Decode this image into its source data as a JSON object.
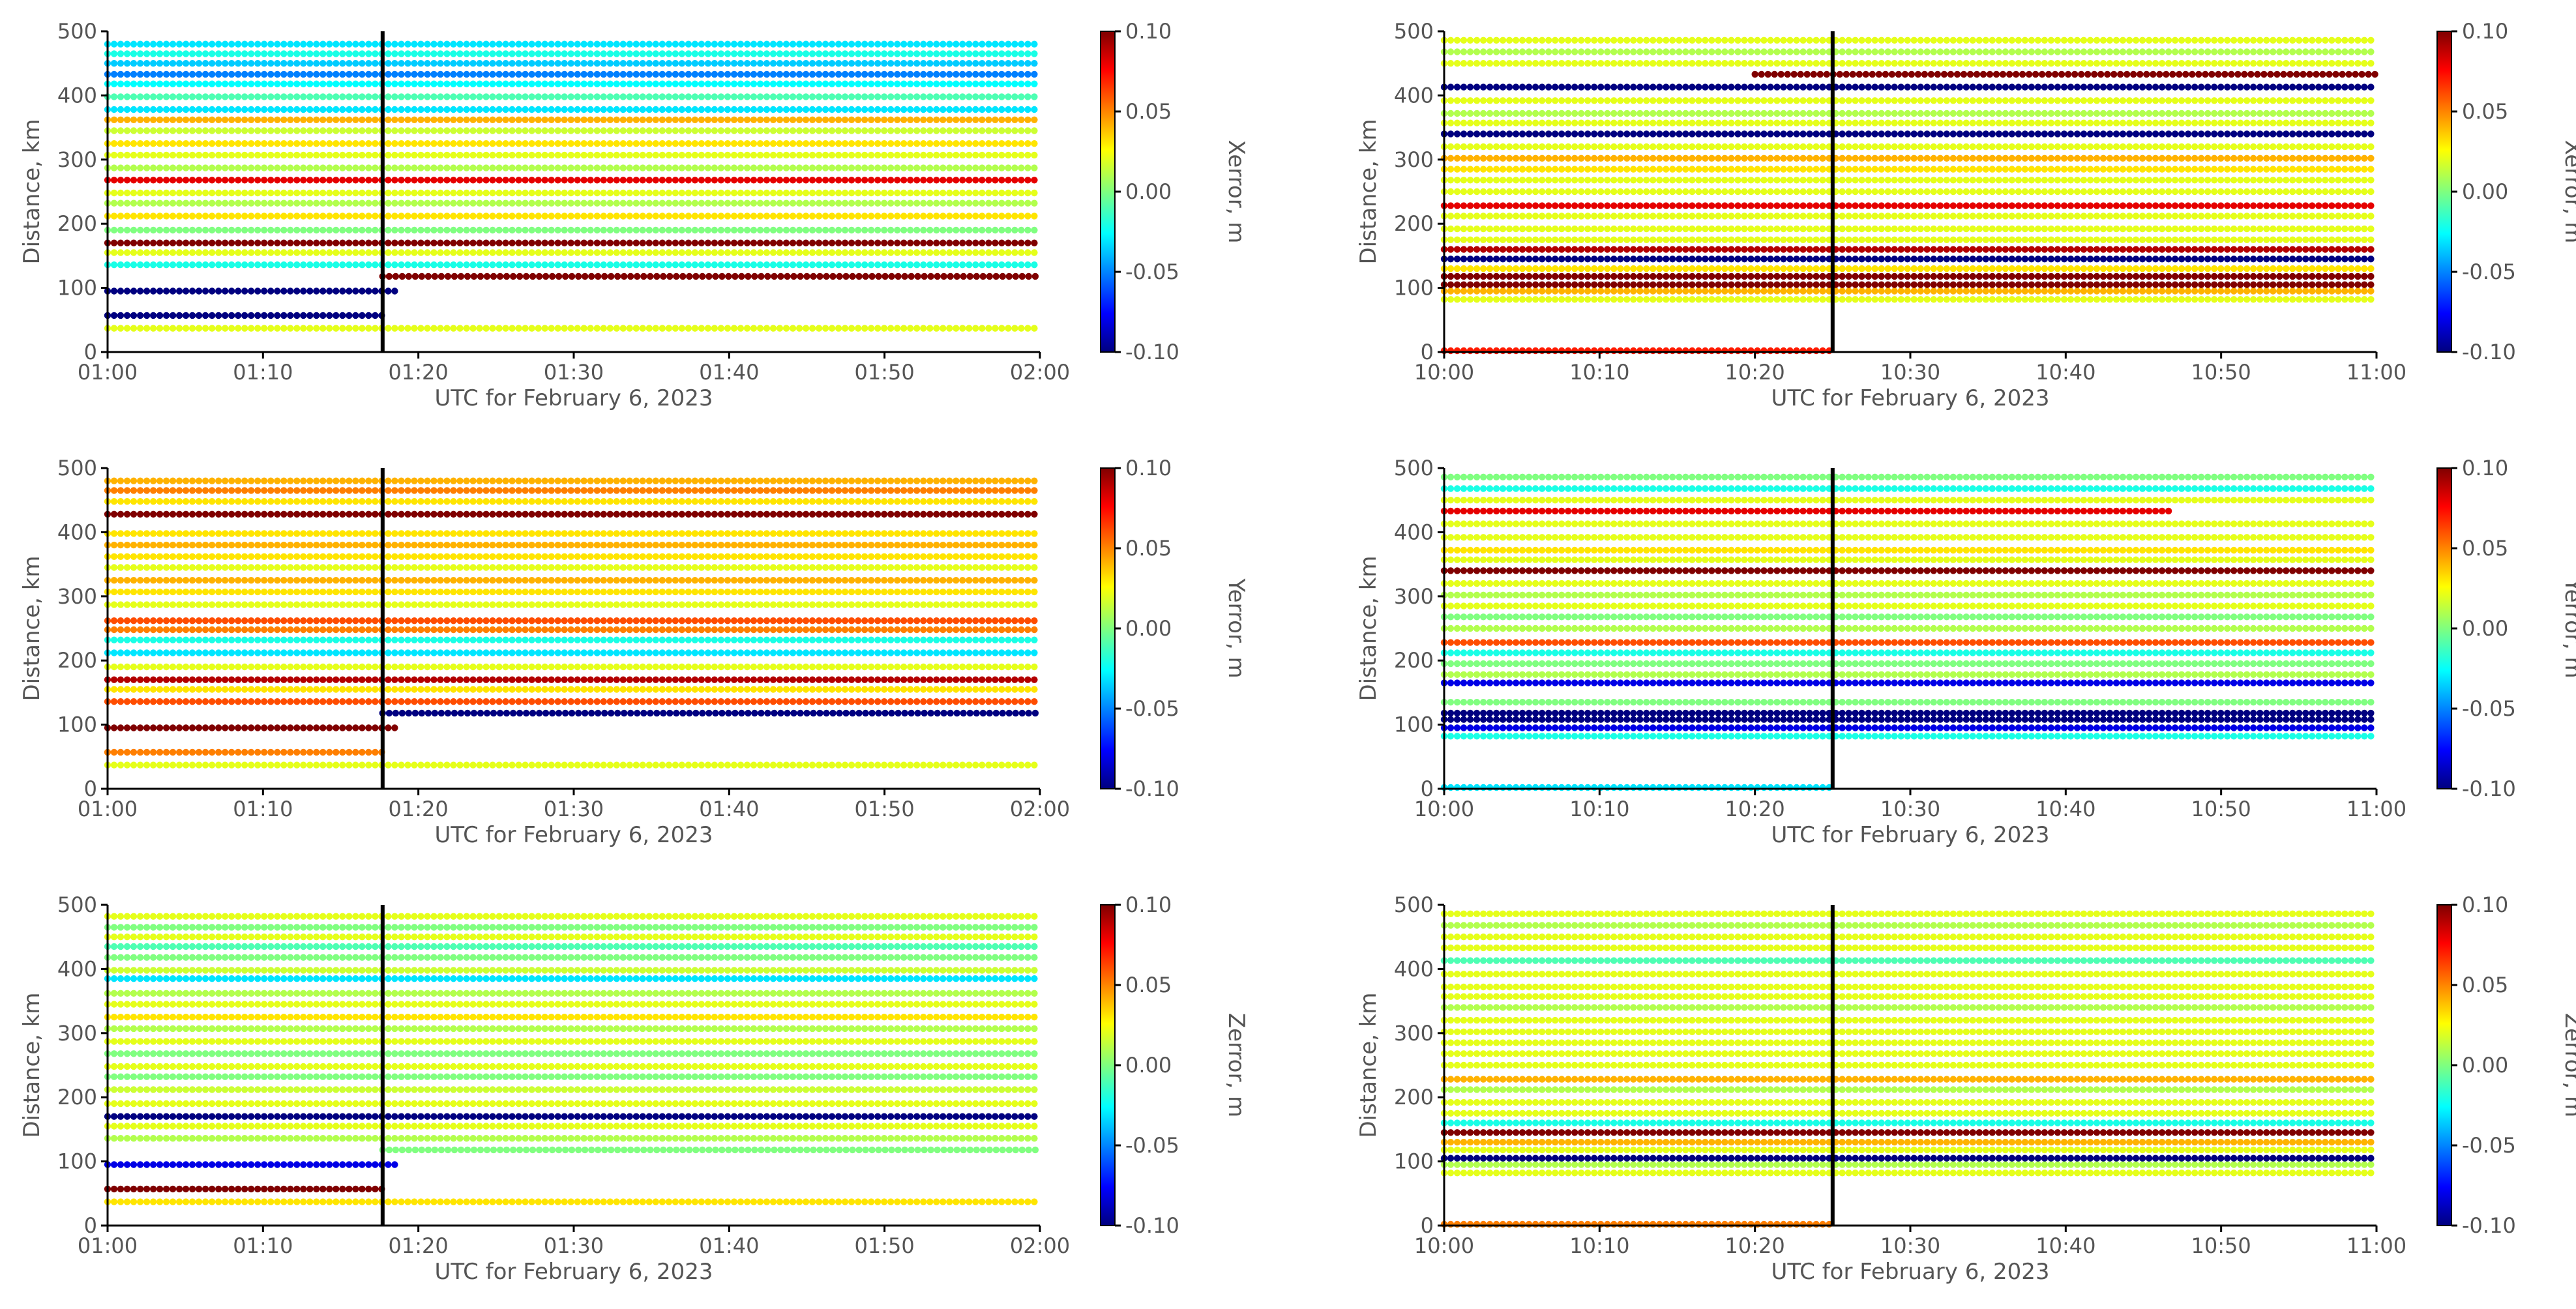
{
  "figure": {
    "colorbar_ticks": [
      "0.10",
      "0.05",
      "0.00",
      "-0.05",
      "-0.10"
    ],
    "colorbar_range": [
      -0.1,
      0.1
    ],
    "colormap": "jet"
  },
  "chart_data": [
    {
      "type": "scatter",
      "xlabel": "UTC for February 6, 2023",
      "ylabel": "Distance, km",
      "colorbar_label": "Xerror, m",
      "xticks": [
        "01:00",
        "01:10",
        "01:20",
        "01:30",
        "01:40",
        "01:50",
        "02:00"
      ],
      "yticks": [
        "0",
        "100",
        "200",
        "300",
        "400",
        "500"
      ],
      "xlim_minutes": [
        0,
        60
      ],
      "ylim": [
        0,
        500
      ],
      "event_line_minute": 17.7,
      "rows": [
        {
          "d": 37,
          "c": 0.02
        },
        {
          "d": 57,
          "c": -0.1,
          "end": 17.7
        },
        {
          "d": 95,
          "c": -0.1,
          "end": 18.5
        },
        {
          "d": 118,
          "c": 0.1,
          "start": 17.7
        },
        {
          "d": 136,
          "c": -0.02
        },
        {
          "d": 155,
          "c": 0.02
        },
        {
          "d": 170,
          "c": 0.1
        },
        {
          "d": 190,
          "c": 0.0
        },
        {
          "d": 212,
          "c": 0.03
        },
        {
          "d": 232,
          "c": 0.01
        },
        {
          "d": 248,
          "c": 0.02
        },
        {
          "d": 268,
          "c": 0.08
        },
        {
          "d": 287,
          "c": 0.01
        },
        {
          "d": 307,
          "c": 0.02
        },
        {
          "d": 325,
          "c": 0.03
        },
        {
          "d": 345,
          "c": 0.015
        },
        {
          "d": 362,
          "c": 0.04
        },
        {
          "d": 378,
          "c": -0.03
        },
        {
          "d": 398,
          "c": -0.01
        },
        {
          "d": 418,
          "c": -0.025
        },
        {
          "d": 433,
          "c": -0.05
        },
        {
          "d": 450,
          "c": -0.035
        },
        {
          "d": 465,
          "c": -0.02
        },
        {
          "d": 480,
          "c": -0.03
        }
      ]
    },
    {
      "type": "scatter",
      "xlabel": "UTC for February 6, 2023",
      "ylabel": "Distance, km",
      "colorbar_label": "Xerror, m",
      "xticks": [
        "10:00",
        "10:10",
        "10:20",
        "10:30",
        "10:40",
        "10:50",
        "11:00"
      ],
      "yticks": [
        "0",
        "100",
        "200",
        "300",
        "400",
        "500"
      ],
      "xlim_minutes": [
        0,
        60
      ],
      "ylim": [
        0,
        500
      ],
      "event_line_minute": 25,
      "rows": [
        {
          "d": 2,
          "c": 0.07,
          "end": 25
        },
        {
          "d": 82,
          "c": 0.02
        },
        {
          "d": 95,
          "c": 0.04
        },
        {
          "d": 105,
          "c": 0.1
        },
        {
          "d": 118,
          "c": 0.1
        },
        {
          "d": 130,
          "c": 0.03
        },
        {
          "d": 145,
          "c": -0.1
        },
        {
          "d": 160,
          "c": 0.09
        },
        {
          "d": 175,
          "c": 0.02
        },
        {
          "d": 192,
          "c": 0.02
        },
        {
          "d": 212,
          "c": 0.02
        },
        {
          "d": 228,
          "c": 0.08
        },
        {
          "d": 250,
          "c": 0.02
        },
        {
          "d": 268,
          "c": 0.02
        },
        {
          "d": 285,
          "c": 0.03
        },
        {
          "d": 302,
          "c": 0.04
        },
        {
          "d": 320,
          "c": 0.02
        },
        {
          "d": 340,
          "c": -0.1
        },
        {
          "d": 357,
          "c": 0.02
        },
        {
          "d": 372,
          "c": 0.01
        },
        {
          "d": 392,
          "c": 0.02
        },
        {
          "d": 413,
          "c": -0.1
        },
        {
          "d": 433,
          "c": 0.1,
          "start": 20
        },
        {
          "d": 450,
          "c": 0.02
        },
        {
          "d": 468,
          "c": 0.01
        },
        {
          "d": 486,
          "c": 0.02
        }
      ]
    },
    {
      "type": "scatter",
      "xlabel": "UTC for February 6, 2023",
      "ylabel": "Distance, km",
      "colorbar_label": "Yerror, m",
      "xticks": [
        "01:00",
        "01:10",
        "01:20",
        "01:30",
        "01:40",
        "01:50",
        "02:00"
      ],
      "yticks": [
        "0",
        "100",
        "200",
        "300",
        "400",
        "500"
      ],
      "xlim_minutes": [
        0,
        60
      ],
      "ylim": [
        0,
        500
      ],
      "event_line_minute": 17.7,
      "rows": [
        {
          "d": 37,
          "c": 0.02
        },
        {
          "d": 57,
          "c": 0.05,
          "end": 17.7
        },
        {
          "d": 95,
          "c": 0.1,
          "end": 18.5
        },
        {
          "d": 118,
          "c": -0.1,
          "start": 17.7
        },
        {
          "d": 136,
          "c": 0.06
        },
        {
          "d": 155,
          "c": 0.03
        },
        {
          "d": 170,
          "c": 0.09
        },
        {
          "d": 190,
          "c": 0.02
        },
        {
          "d": 212,
          "c": -0.03
        },
        {
          "d": 232,
          "c": -0.02
        },
        {
          "d": 248,
          "c": 0.05
        },
        {
          "d": 262,
          "c": 0.06
        },
        {
          "d": 287,
          "c": 0.02
        },
        {
          "d": 307,
          "c": 0.03
        },
        {
          "d": 325,
          "c": 0.04
        },
        {
          "d": 345,
          "c": 0.02
        },
        {
          "d": 362,
          "c": 0.03
        },
        {
          "d": 380,
          "c": 0.04
        },
        {
          "d": 398,
          "c": 0.03
        },
        {
          "d": 428,
          "c": 0.1
        },
        {
          "d": 448,
          "c": 0.03
        },
        {
          "d": 465,
          "c": 0.05
        },
        {
          "d": 480,
          "c": 0.04
        }
      ]
    },
    {
      "type": "scatter",
      "xlabel": "UTC for February 6, 2023",
      "ylabel": "Distance, km",
      "colorbar_label": "Yerror, m",
      "xticks": [
        "10:00",
        "10:10",
        "10:20",
        "10:30",
        "10:40",
        "10:50",
        "11:00"
      ],
      "yticks": [
        "0",
        "100",
        "200",
        "300",
        "400",
        "500"
      ],
      "xlim_minutes": [
        0,
        60
      ],
      "ylim": [
        0,
        500
      ],
      "event_line_minute": 25,
      "rows": [
        {
          "d": 2,
          "c": -0.03,
          "end": 25
        },
        {
          "d": 82,
          "c": -0.02
        },
        {
          "d": 95,
          "c": -0.08
        },
        {
          "d": 108,
          "c": -0.1
        },
        {
          "d": 118,
          "c": -0.1
        },
        {
          "d": 135,
          "c": 0.0
        },
        {
          "d": 165,
          "c": -0.08
        },
        {
          "d": 178,
          "c": 0.01
        },
        {
          "d": 195,
          "c": 0.0
        },
        {
          "d": 212,
          "c": -0.02
        },
        {
          "d": 228,
          "c": 0.06
        },
        {
          "d": 250,
          "c": 0.01
        },
        {
          "d": 268,
          "c": 0.0
        },
        {
          "d": 285,
          "c": 0.02
        },
        {
          "d": 302,
          "c": 0.01
        },
        {
          "d": 320,
          "c": 0.02
        },
        {
          "d": 340,
          "c": 0.1
        },
        {
          "d": 357,
          "c": 0.02
        },
        {
          "d": 372,
          "c": 0.03
        },
        {
          "d": 392,
          "c": 0.02
        },
        {
          "d": 413,
          "c": 0.02
        },
        {
          "d": 433,
          "c": 0.08,
          "end": 47
        },
        {
          "d": 450,
          "c": 0.02
        },
        {
          "d": 468,
          "c": -0.02
        },
        {
          "d": 486,
          "c": 0.0
        }
      ]
    },
    {
      "type": "scatter",
      "xlabel": "UTC for February 6, 2023",
      "ylabel": "Distance, km",
      "colorbar_label": "Zerror, m",
      "xticks": [
        "01:00",
        "01:10",
        "01:20",
        "01:30",
        "01:40",
        "01:50",
        "02:00"
      ],
      "yticks": [
        "0",
        "100",
        "200",
        "300",
        "400",
        "500"
      ],
      "xlim_minutes": [
        0,
        60
      ],
      "ylim": [
        0,
        500
      ],
      "event_line_minute": 17.7,
      "rows": [
        {
          "d": 37,
          "c": 0.03
        },
        {
          "d": 57,
          "c": 0.1,
          "end": 17.7
        },
        {
          "d": 95,
          "c": -0.08,
          "end": 18.5
        },
        {
          "d": 118,
          "c": 0.0,
          "start": 17.7
        },
        {
          "d": 136,
          "c": 0.01
        },
        {
          "d": 155,
          "c": 0.02
        },
        {
          "d": 170,
          "c": -0.1
        },
        {
          "d": 190,
          "c": 0.02
        },
        {
          "d": 212,
          "c": 0.015
        },
        {
          "d": 232,
          "c": 0.0
        },
        {
          "d": 248,
          "c": 0.02
        },
        {
          "d": 268,
          "c": 0.0
        },
        {
          "d": 287,
          "c": 0.02
        },
        {
          "d": 307,
          "c": 0.01
        },
        {
          "d": 325,
          "c": 0.03
        },
        {
          "d": 345,
          "c": 0.02
        },
        {
          "d": 362,
          "c": 0.01
        },
        {
          "d": 385,
          "c": -0.03
        },
        {
          "d": 398,
          "c": 0.015
        },
        {
          "d": 418,
          "c": 0.0
        },
        {
          "d": 435,
          "c": -0.01
        },
        {
          "d": 450,
          "c": 0.02
        },
        {
          "d": 465,
          "c": 0.0
        },
        {
          "d": 482,
          "c": 0.02
        }
      ]
    },
    {
      "type": "scatter",
      "xlabel": "UTC for February 6, 2023",
      "ylabel": "Distance, km",
      "colorbar_label": "Zerror, m",
      "xticks": [
        "10:00",
        "10:10",
        "10:20",
        "10:30",
        "10:40",
        "10:50",
        "11:00"
      ],
      "yticks": [
        "0",
        "100",
        "200",
        "300",
        "400",
        "500"
      ],
      "xlim_minutes": [
        0,
        60
      ],
      "ylim": [
        0,
        500
      ],
      "event_line_minute": 25,
      "rows": [
        {
          "d": 2,
          "c": 0.05,
          "end": 25
        },
        {
          "d": 82,
          "c": 0.02
        },
        {
          "d": 95,
          "c": 0.01
        },
        {
          "d": 105,
          "c": -0.1
        },
        {
          "d": 118,
          "c": 0.02
        },
        {
          "d": 130,
          "c": 0.04
        },
        {
          "d": 145,
          "c": 0.1
        },
        {
          "d": 160,
          "c": -0.02
        },
        {
          "d": 175,
          "c": 0.02
        },
        {
          "d": 192,
          "c": 0.02
        },
        {
          "d": 212,
          "c": 0.01
        },
        {
          "d": 228,
          "c": 0.04
        },
        {
          "d": 250,
          "c": 0.02
        },
        {
          "d": 268,
          "c": 0.02
        },
        {
          "d": 285,
          "c": 0.02
        },
        {
          "d": 302,
          "c": 0.02
        },
        {
          "d": 320,
          "c": 0.02
        },
        {
          "d": 340,
          "c": 0.01
        },
        {
          "d": 357,
          "c": 0.02
        },
        {
          "d": 372,
          "c": 0.02
        },
        {
          "d": 392,
          "c": 0.02
        },
        {
          "d": 413,
          "c": -0.01
        },
        {
          "d": 433,
          "c": 0.02
        },
        {
          "d": 450,
          "c": 0.02
        },
        {
          "d": 468,
          "c": 0.01
        },
        {
          "d": 486,
          "c": 0.02
        }
      ]
    }
  ]
}
